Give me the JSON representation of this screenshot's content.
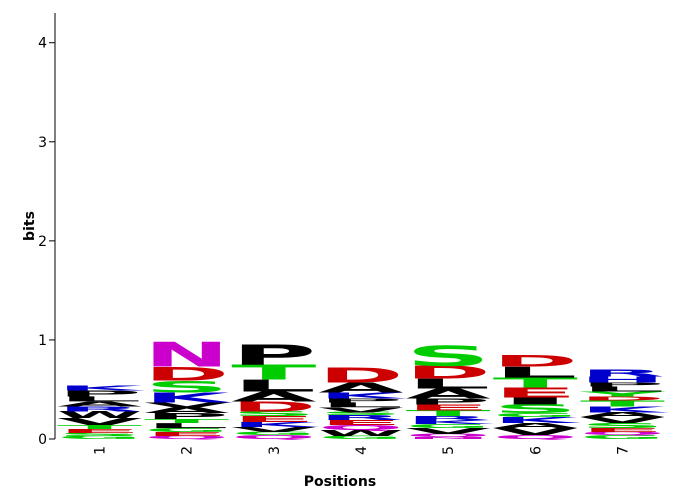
{
  "chart_data": {
    "type": "logo",
    "y_label": "bits",
    "x_label": "Positions",
    "ylim": [
      0,
      4.3
    ],
    "yticks": [
      0,
      1,
      2,
      3,
      4
    ],
    "colors": {
      "G": "#00cc00",
      "S": "#00cc00",
      "T": "#00cc00",
      "Y": "#00cc00",
      "C": "#00cc00",
      "N": "#cc00cc",
      "Q": "#cc00cc",
      "K": "#0000cc",
      "R": "#0000cc",
      "H": "#0000cc",
      "D": "#cc0000",
      "E": "#cc0000",
      "P": "#000000",
      "A": "#000000",
      "W": "#000000",
      "F": "#000000",
      "L": "#000000",
      "I": "#000000",
      "M": "#000000",
      "V": "#000000"
    },
    "positions": [
      {
        "label": "1",
        "letters": [
          "G",
          "S",
          "E",
          "T",
          "V",
          "W",
          "R",
          "A",
          "L",
          "P",
          "K"
        ],
        "values": [
          0.03,
          0.03,
          0.04,
          0.04,
          0.07,
          0.07,
          0.05,
          0.05,
          0.05,
          0.06,
          0.05
        ]
      },
      {
        "label": "2",
        "letters": [
          "Q",
          "E",
          "G",
          "L",
          "T",
          "P",
          "A",
          "V",
          "K",
          "S",
          "D",
          "N"
        ],
        "values": [
          0.03,
          0.04,
          0.04,
          0.05,
          0.04,
          0.06,
          0.06,
          0.05,
          0.1,
          0.12,
          0.14,
          0.25
        ]
      },
      {
        "label": "3",
        "letters": [
          "Q",
          "G",
          "V",
          "K",
          "E",
          "S",
          "D",
          "A",
          "L",
          "T",
          "P"
        ],
        "values": [
          0.04,
          0.03,
          0.05,
          0.05,
          0.06,
          0.05,
          0.1,
          0.1,
          0.12,
          0.15,
          0.2
        ]
      },
      {
        "label": "4",
        "letters": [
          "G",
          "W",
          "Q",
          "E",
          "R",
          "S",
          "V",
          "L",
          "P",
          "K",
          "A",
          "D"
        ],
        "values": [
          0.03,
          0.06,
          0.05,
          0.05,
          0.05,
          0.03,
          0.05,
          0.05,
          0.04,
          0.06,
          0.1,
          0.15
        ]
      },
      {
        "label": "5",
        "letters": [
          "N",
          "Q",
          "V",
          "G",
          "K",
          "R",
          "T",
          "E",
          "P",
          "A",
          "L",
          "D",
          "S"
        ],
        "values": [
          0.02,
          0.03,
          0.06,
          0.04,
          0.04,
          0.04,
          0.06,
          0.06,
          0.06,
          0.1,
          0.1,
          0.13,
          0.2
        ]
      },
      {
        "label": "6",
        "letters": [
          "Q",
          "V",
          "A",
          "K",
          "G",
          "S",
          "I",
          "E",
          "T",
          "L",
          "D"
        ],
        "values": [
          0.04,
          0.07,
          0.05,
          0.06,
          0.04,
          0.09,
          0.07,
          0.1,
          0.1,
          0.11,
          0.12
        ]
      },
      {
        "label": "7",
        "letters": [
          "G",
          "Q",
          "E",
          "S",
          "V",
          "A",
          "K",
          "T",
          "D",
          "Y",
          "L",
          "P",
          "H",
          "R"
        ],
        "values": [
          0.04,
          0.03,
          0.04,
          0.05,
          0.06,
          0.05,
          0.06,
          0.06,
          0.04,
          0.05,
          0.05,
          0.04,
          0.06,
          0.07
        ]
      }
    ]
  }
}
